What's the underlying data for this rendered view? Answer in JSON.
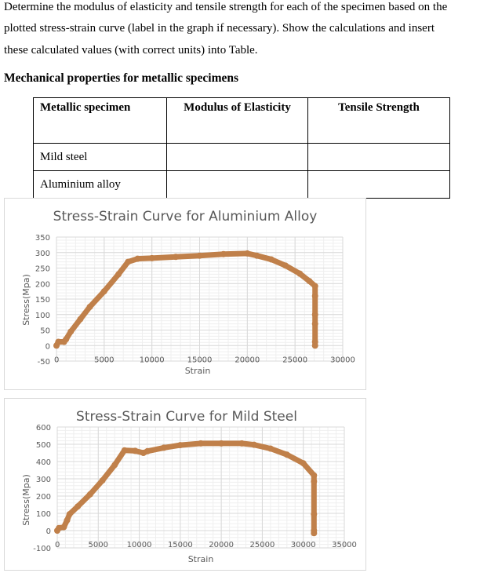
{
  "instructions": {
    "line1": "Determine the modulus of elasticity and tensile strength for each of the specimen based on the",
    "line2": "plotted stress-strain curve (label in the graph if necessary). Show the calculations and insert",
    "line3": "these calculated values (with correct units) into Table."
  },
  "table": {
    "caption": "Mechanical properties for metallic specimens",
    "headers": [
      "Metallic specimen",
      "Modulus of Elasticity",
      "Tensile Strength"
    ],
    "rows": [
      [
        "Mild steel",
        "",
        ""
      ],
      [
        "Aluminium alloy",
        "",
        ""
      ]
    ]
  },
  "colors": {
    "series": "#C0804A",
    "grid_major": "#d9d9d9",
    "grid_minor": "#efefef",
    "axis_text": "#595959"
  },
  "chart_data": [
    {
      "type": "scatter",
      "title": "Stress-Strain Curve for Aluminium Alloy",
      "xlabel": "Strain",
      "ylabel": "Stress(Mpa)",
      "xlim": [
        0,
        30000
      ],
      "ylim": [
        -50,
        350
      ],
      "xticks": [
        0,
        5000,
        10000,
        15000,
        20000,
        25000,
        30000
      ],
      "yticks": [
        -50,
        0,
        50,
        100,
        150,
        200,
        250,
        300,
        350
      ],
      "grid": true,
      "legend": null,
      "series": [
        {
          "name": "Aluminium Alloy",
          "x": [
            0,
            200,
            800,
            1000,
            1500,
            2500,
            3500,
            5000,
            6500,
            7500,
            8500,
            10000,
            12500,
            15000,
            17500,
            20000,
            21000,
            22500,
            24000,
            25500,
            26500,
            27100,
            27100,
            27100,
            27100,
            27100,
            27100
          ],
          "y": [
            0,
            12,
            12,
            20,
            45,
            85,
            125,
            175,
            230,
            270,
            280,
            282,
            286,
            290,
            295,
            297,
            290,
            278,
            258,
            232,
            208,
            192,
            160,
            100,
            70,
            12,
            0
          ]
        }
      ]
    },
    {
      "type": "scatter",
      "title": "Stress-Strain Curve for Mild Steel",
      "xlabel": "Strain",
      "ylabel": "Stress(Mpa)",
      "xlim": [
        0,
        35000
      ],
      "ylim": [
        -100,
        600
      ],
      "xticks": [
        0,
        5000,
        10000,
        15000,
        20000,
        25000,
        30000,
        35000
      ],
      "yticks": [
        -100,
        0,
        100,
        200,
        300,
        400,
        500,
        600
      ],
      "grid": true,
      "legend": null,
      "series": [
        {
          "name": "Mild Steel",
          "x": [
            0,
            200,
            800,
            1200,
            1500,
            2500,
            4000,
            5500,
            7000,
            8200,
            9500,
            10500,
            11000,
            13000,
            15000,
            17500,
            20000,
            22500,
            24000,
            26000,
            28000,
            30000,
            31300,
            31300,
            31300,
            31300,
            31300
          ],
          "y": [
            0,
            15,
            20,
            60,
            95,
            140,
            210,
            290,
            380,
            465,
            462,
            450,
            460,
            480,
            495,
            505,
            505,
            505,
            497,
            475,
            440,
            390,
            320,
            285,
            95,
            0,
            -15
          ]
        }
      ]
    }
  ]
}
